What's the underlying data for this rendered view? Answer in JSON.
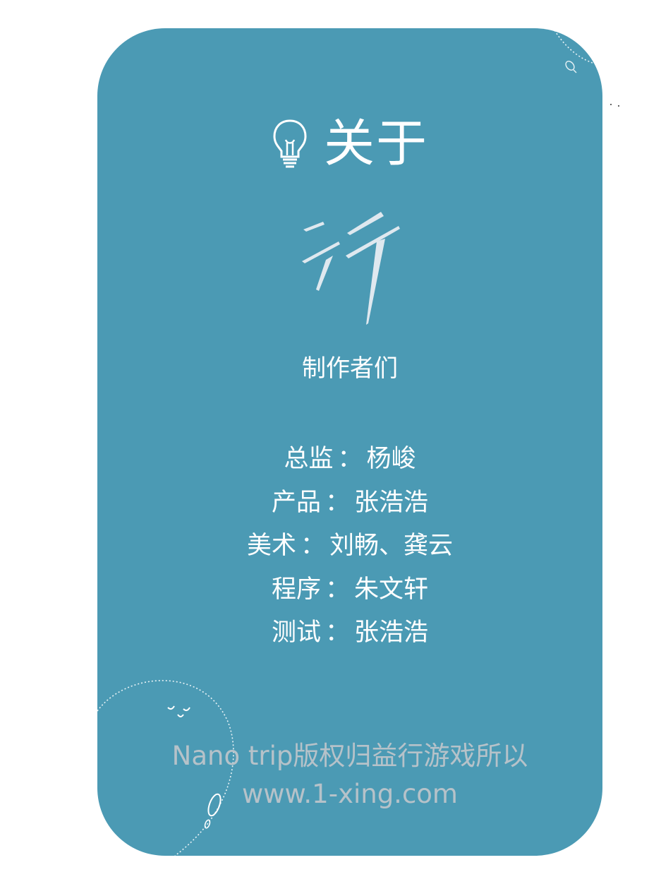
{
  "header": {
    "icon": "lightbulb-icon",
    "title": "关于"
  },
  "logo": {
    "icon": "xing-calligraphy-logo",
    "glyph": "行"
  },
  "subtitle": "制作者们",
  "credits": [
    {
      "role": "总监",
      "names": "杨峻"
    },
    {
      "role": "产品",
      "names": "张浩浩"
    },
    {
      "role": "美术",
      "names": "刘畅、龚云"
    },
    {
      "role": "程序",
      "names": "朱文轩"
    },
    {
      "role": "测试",
      "names": "张浩浩"
    }
  ],
  "separator": "：",
  "footer": {
    "copyright": "Nano trip版权归益行游戏所以",
    "url": "www.1-xing.com"
  },
  "colors": {
    "card_background": "#4b9ab4",
    "text": "#ffffff",
    "footer_text": "#b6c2c9"
  }
}
